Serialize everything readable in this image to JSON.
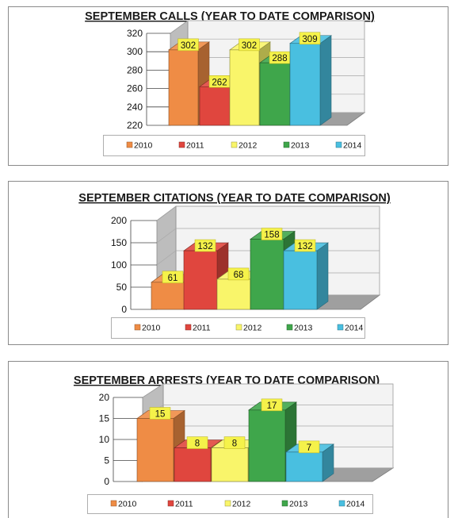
{
  "chart_data": [
    {
      "type": "bar",
      "title": "SEPTEMBER CALLS (YEAR TO DATE COMPARISON)",
      "categories": [
        "2010",
        "2011",
        "2012",
        "2013",
        "2014"
      ],
      "values": [
        302,
        262,
        302,
        288,
        309
      ],
      "ylim": [
        220,
        320
      ],
      "yticks": [
        220,
        240,
        260,
        280,
        300,
        320
      ],
      "xlabel": "",
      "ylabel": "",
      "grid": true,
      "legend": "bottom",
      "colors": [
        "#ef8c45",
        "#e0463e",
        "#f9f56a",
        "#3fa64b",
        "#49bfe0"
      ]
    },
    {
      "type": "bar",
      "title": "SEPTEMBER CITATIONS (YEAR TO DATE COMPARISON)",
      "categories": [
        "2010",
        "2011",
        "2012",
        "2013",
        "2014"
      ],
      "values": [
        61,
        132,
        68,
        158,
        132
      ],
      "ylim": [
        0,
        200
      ],
      "yticks": [
        0,
        50,
        100,
        150,
        200
      ],
      "xlabel": "",
      "ylabel": "",
      "grid": true,
      "legend": "bottom",
      "colors": [
        "#ef8c45",
        "#e0463e",
        "#f9f56a",
        "#3fa64b",
        "#49bfe0"
      ]
    },
    {
      "type": "bar",
      "title": "SEPTEMBER ARRESTS (YEAR TO DATE COMPARISON)",
      "categories": [
        "2010",
        "2011",
        "2012",
        "2013",
        "2014"
      ],
      "values": [
        15,
        8,
        8,
        17,
        7
      ],
      "ylim": [
        0,
        20
      ],
      "yticks": [
        0,
        5,
        10,
        15,
        20
      ],
      "xlabel": "",
      "ylabel": "",
      "grid": true,
      "legend": "bottom",
      "colors": [
        "#ef8c45",
        "#e0463e",
        "#f9f56a",
        "#3fa64b",
        "#49bfe0"
      ]
    }
  ]
}
